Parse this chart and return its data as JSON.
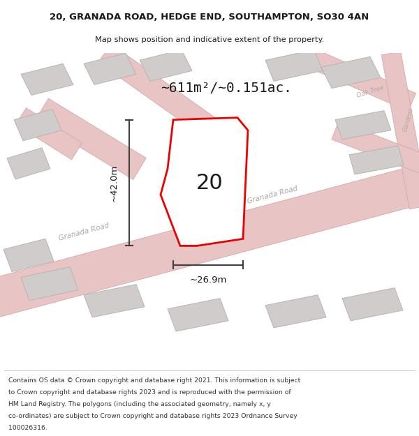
{
  "title_line1": "20, GRANADA ROAD, HEDGE END, SOUTHAMPTON, SO30 4AN",
  "title_line2": "Map shows position and indicative extent of the property.",
  "area_label": "~611m²/~0.151ac.",
  "number_label": "20",
  "dim_height": "~42.0m",
  "dim_width": "~26.9m",
  "footer_lines": [
    "Contains OS data © Crown copyright and database right 2021. This information is subject",
    "to Crown copyright and database rights 2023 and is reproduced with the permission of",
    "HM Land Registry. The polygons (including the associated geometry, namely x, y",
    "co-ordinates) are subject to Crown copyright and database rights 2023 Ordnance Survey",
    "100026316."
  ],
  "map_bg": "#eeebe8",
  "plot_fill": "#ffffff",
  "plot_edge": "#ee0000",
  "road_fill": "#e8c4c4",
  "road_edge": "#d4a8a8",
  "building_color": "#d0cccc",
  "building_edge": "#b8b4b4",
  "text_color": "#1a1a1a",
  "dim_line_color": "#404040",
  "road_label_color": "#b0a8a8",
  "title_bg": "#ffffff",
  "footer_bg": "#ffffff"
}
